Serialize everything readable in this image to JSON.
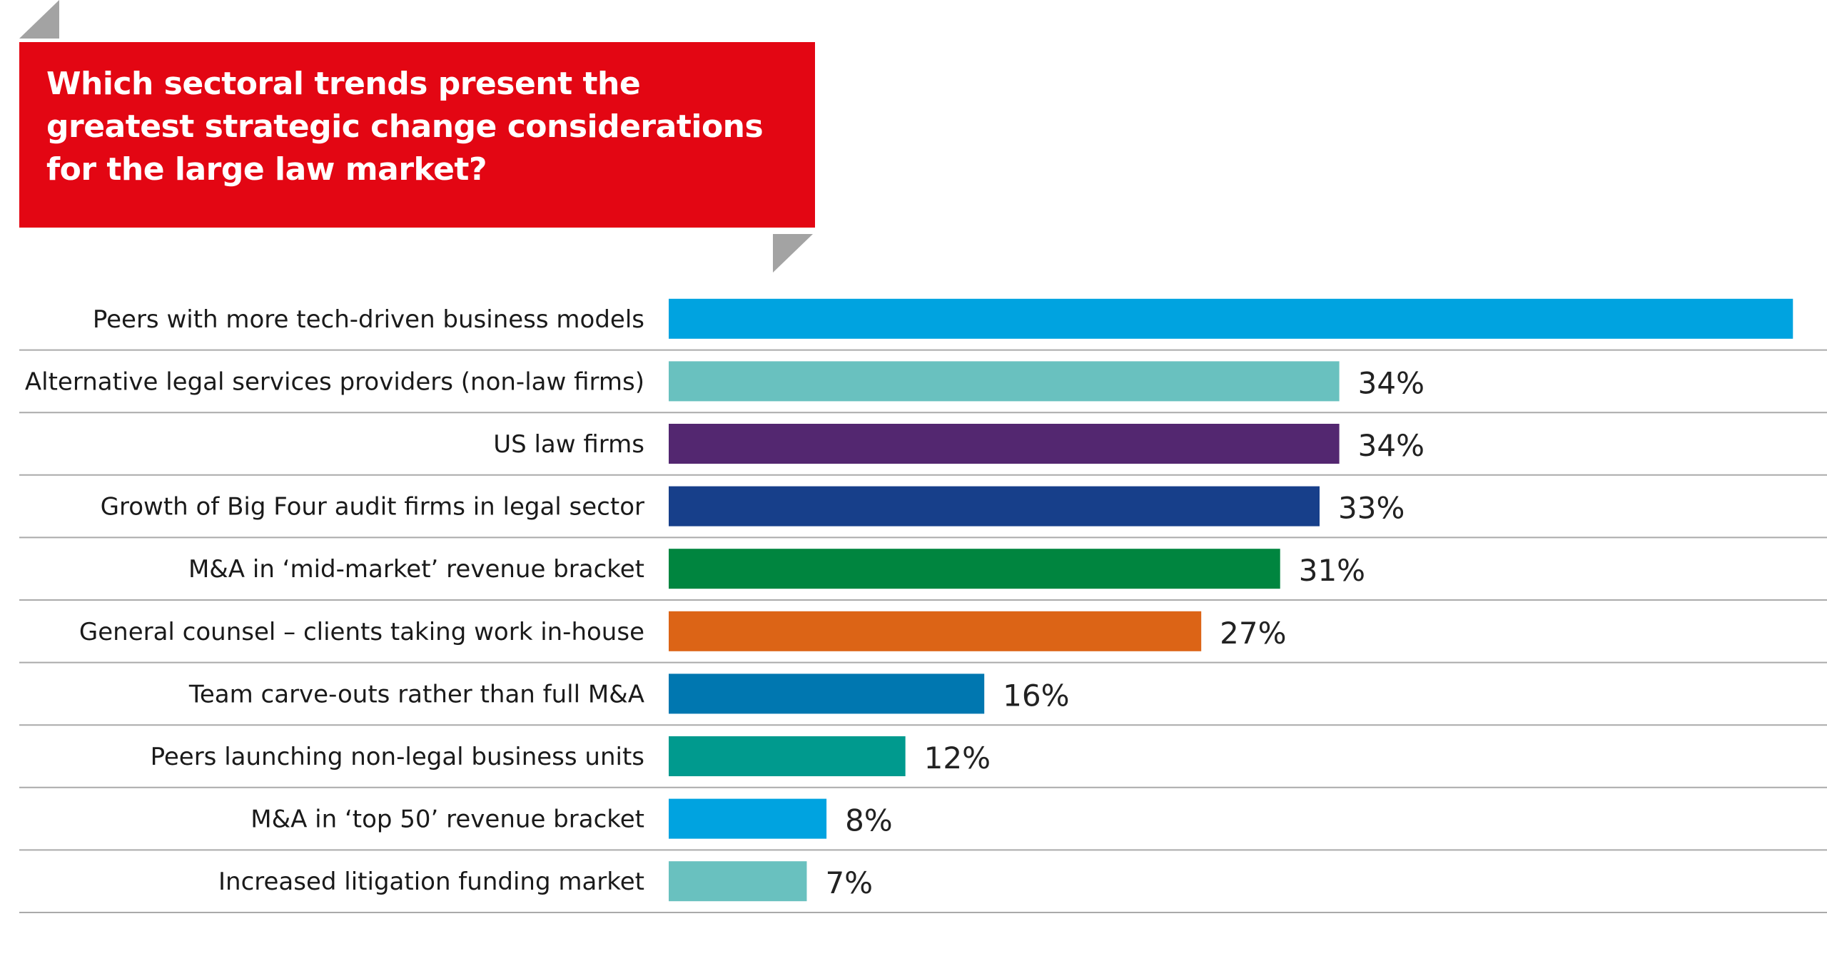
{
  "chart_data": {
    "type": "bar",
    "orientation": "horizontal",
    "title": "Which sectoral trends present the greatest strategic change considerations for the large law market?",
    "xlabel": "",
    "ylabel": "",
    "xlim": [
      0,
      55
    ],
    "grid": false,
    "legend": "none",
    "categories": [
      "Peers with more tech-driven business models",
      "Alternative legal services providers (non-law firms)",
      "US law firms",
      "Growth of Big Four audit firms in legal sector",
      "M&A in ‘mid-market’ revenue bracket",
      "General counsel – clients taking work in-house",
      "Team carve-outs rather than full M&A",
      "Peers launching non-legal business units",
      "M&A in ‘top 50’ revenue bracket",
      "Increased litigation funding market"
    ],
    "values": [
      57,
      34,
      34,
      33,
      31,
      27,
      16,
      12,
      8,
      7
    ],
    "value_labels": [
      "",
      "34%",
      "34%",
      "33%",
      "31%",
      "27%",
      "16%",
      "12%",
      "8%",
      "7%"
    ],
    "colors": [
      "#00a3e0",
      "#69c1bf",
      "#532770",
      "#173f8a",
      "#00853f",
      "#dc6416",
      "#0077b0",
      "#009a8e",
      "#00a3e0",
      "#69c1bf"
    ]
  },
  "style": {
    "banner_color": "#e30613",
    "fold_color": "#a3a3a3",
    "divider_color": "#aaaaaa"
  }
}
